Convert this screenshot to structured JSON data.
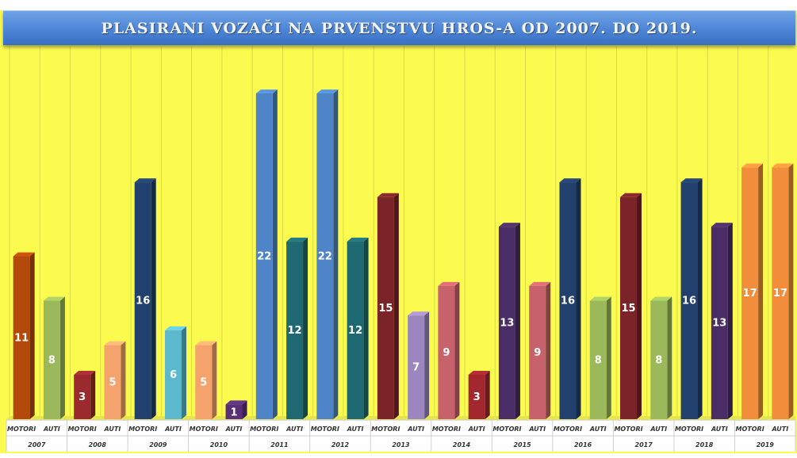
{
  "chart_data": {
    "type": "bar",
    "title": "PLASIRANI VOZAČI NA PRVENSTVU HROS-A OD 2007. DO 2019.",
    "subcategories": [
      "MOTORI",
      "AUTI"
    ],
    "years": [
      "2007",
      "2008",
      "2009",
      "2010",
      "2011",
      "2012",
      "2013",
      "2014",
      "2015",
      "2016",
      "2017",
      "2018",
      "2019"
    ],
    "values": [
      [
        11,
        8
      ],
      [
        3,
        5
      ],
      [
        16,
        6
      ],
      [
        5,
        1
      ],
      [
        22,
        12
      ],
      [
        22,
        12
      ],
      [
        15,
        7
      ],
      [
        9,
        3
      ],
      [
        13,
        9
      ],
      [
        16,
        8
      ],
      [
        15,
        8
      ],
      [
        16,
        13
      ],
      [
        17,
        17
      ]
    ],
    "labels_shown": [
      [
        true,
        true
      ],
      [
        true,
        true
      ],
      [
        true,
        true
      ],
      [
        true,
        true
      ],
      [
        true,
        true
      ],
      [
        true,
        true
      ],
      [
        true,
        true
      ],
      [
        true,
        true
      ],
      [
        true,
        true
      ],
      [
        true,
        true
      ],
      [
        true,
        true
      ],
      [
        true,
        true
      ],
      [
        true,
        true
      ]
    ],
    "bar_colors": [
      [
        "#b34a0c",
        "#9bb85a"
      ],
      [
        "#9a2a2e",
        "#f4a36c"
      ],
      [
        "#22406e",
        "#5cb8cc"
      ],
      [
        "#f4a36c",
        "#5a2f7a"
      ],
      [
        "#4f85c8",
        "#1f6a72"
      ],
      [
        "#4f85c8",
        "#1f6a72"
      ],
      [
        "#7a2328",
        "#9c86bf"
      ],
      [
        "#c7616c",
        "#a3272e"
      ],
      [
        "#4a2c66",
        "#c7616c"
      ],
      [
        "#22406e",
        "#9bb85a"
      ],
      [
        "#7a2328",
        "#9bb85a"
      ],
      [
        "#22406e",
        "#4a2c66"
      ],
      [
        "#f28d3c",
        "#f28d3c"
      ]
    ],
    "ylim": [
      0,
      22
    ],
    "grid": true,
    "legend": "none",
    "background_color": "#fbfb4f"
  }
}
